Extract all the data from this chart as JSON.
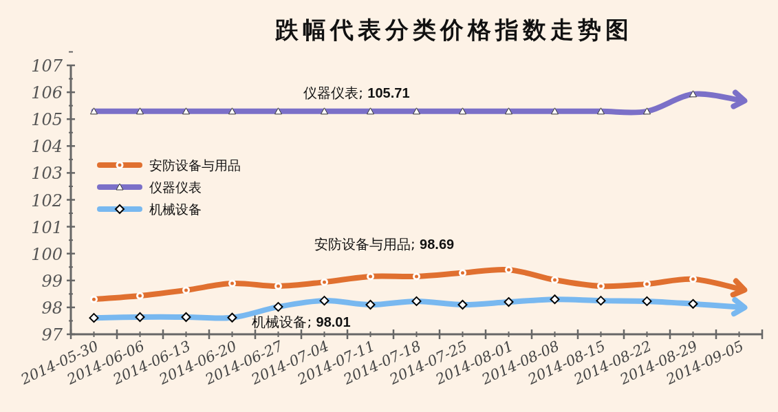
{
  "chart_data": {
    "type": "line",
    "title": "跌幅代表分类价格指数走势图",
    "categories": [
      "2014-05-30",
      "2014-06-06",
      "2014-06-13",
      "2014-06-20",
      "2014-06-27",
      "2014-07-04",
      "2014-07-11",
      "2014-07-18",
      "2014-07-25",
      "2014-08-01",
      "2014-08-08",
      "2014-08-15",
      "2014-08-22",
      "2014-08-29",
      "2014-09-05"
    ],
    "series": [
      {
        "name": "安防设备与用品",
        "color": "#e07030",
        "marker": "circle",
        "values": [
          98.3,
          98.43,
          98.64,
          98.89,
          98.79,
          98.94,
          99.15,
          99.15,
          99.28,
          99.4,
          99.02,
          98.79,
          98.87,
          99.05,
          98.69
        ]
      },
      {
        "name": "仪器仪表",
        "color": "#7b70c8",
        "marker": "triangle",
        "values": [
          105.29,
          105.29,
          105.29,
          105.29,
          105.29,
          105.29,
          105.29,
          105.29,
          105.29,
          105.29,
          105.29,
          105.29,
          105.29,
          105.93,
          105.71
        ]
      },
      {
        "name": "机械设备",
        "color": "#78b8f0",
        "marker": "diamond",
        "values": [
          97.61,
          97.64,
          97.64,
          97.62,
          98.02,
          98.25,
          98.1,
          98.23,
          98.1,
          98.2,
          98.3,
          98.25,
          98.23,
          98.13,
          98.01
        ]
      }
    ],
    "annotations": [
      "安防设备与用品; **98.69**",
      "仪器仪表; **105.71**",
      "机械设备; **98.01**"
    ],
    "ylim": [
      97,
      107
    ],
    "yticks": [
      97,
      98,
      99,
      100,
      101,
      102,
      103,
      104,
      105,
      106,
      107
    ],
    "legend": "left",
    "grid": false
  }
}
